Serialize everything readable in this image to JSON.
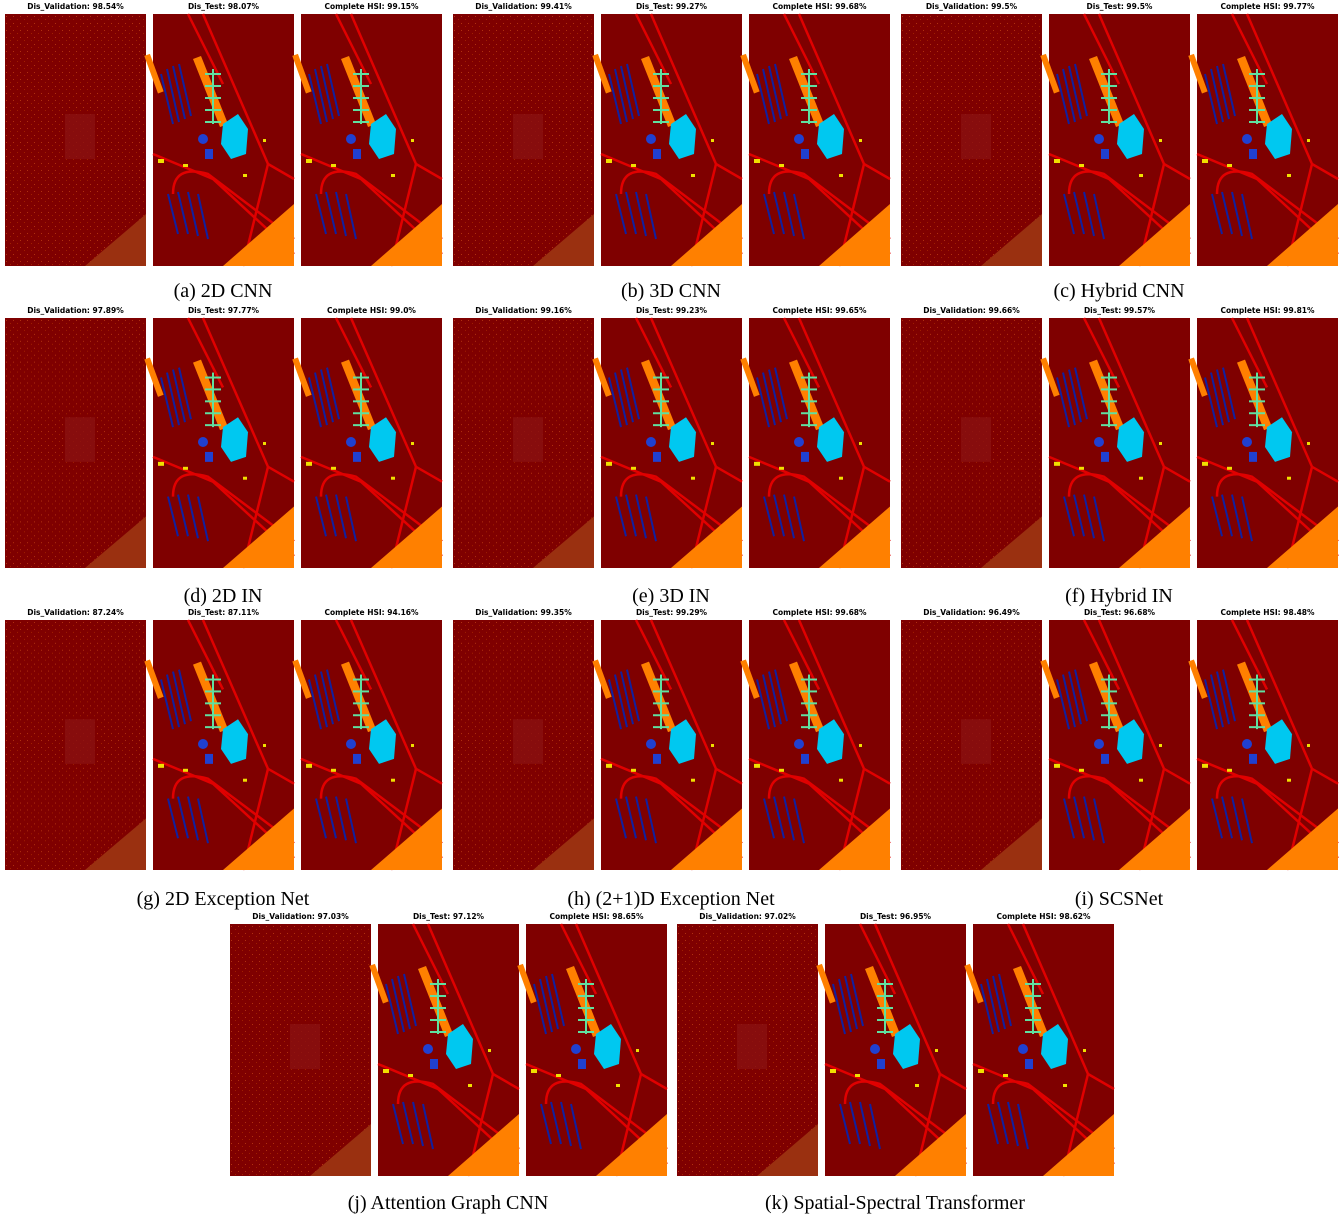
{
  "panels": [
    {
      "caption": "(a) 2D CNN",
      "maps": [
        "Dis_Validation: 98.54%",
        "Dis_Test: 98.07%",
        "Complete HSI: 99.15%"
      ]
    },
    {
      "caption": "(b) 3D CNN",
      "maps": [
        "Dis_Validation: 99.41%",
        "Dis_Test: 99.27%",
        "Complete HSI: 99.68%"
      ]
    },
    {
      "caption": "(c) Hybrid CNN",
      "maps": [
        "Dis_Validation: 99.5%",
        "Dis_Test: 99.5%",
        "Complete HSI: 99.77%"
      ]
    },
    {
      "caption": "(d) 2D IN",
      "maps": [
        "Dis_Validation: 97.89%",
        "Dis_Test: 97.77%",
        "Complete HSI: 99.0%"
      ]
    },
    {
      "caption": "(e) 3D IN",
      "maps": [
        "Dis_Validation: 99.16%",
        "Dis_Test: 99.23%",
        "Complete HSI: 99.65%"
      ]
    },
    {
      "caption": "(f) Hybrid IN",
      "maps": [
        "Dis_Validation: 99.66%",
        "Dis_Test: 99.57%",
        "Complete HSI: 99.81%"
      ]
    },
    {
      "caption": "(g) 2D Exception Net",
      "maps": [
        "Dis_Validation: 87.24%",
        "Dis_Test: 87.11%",
        "Complete HSI: 94.16%"
      ]
    },
    {
      "caption": "(h) (2+1)D Exception Net",
      "maps": [
        "Dis_Validation: 99.35%",
        "Dis_Test: 99.29%",
        "Complete HSI: 99.68%"
      ]
    },
    {
      "caption": "(i) SCSNet",
      "maps": [
        "Dis_Validation: 96.49%",
        "Dis_Test: 96.68%",
        "Complete HSI: 98.48%"
      ]
    },
    {
      "caption": "(j) Attention Graph CNN",
      "maps": [
        "Dis_Validation: 97.03%",
        "Dis_Test: 97.12%",
        "Complete HSI: 98.65%"
      ]
    },
    {
      "caption": "(k) Spatial-Spectral Transformer",
      "maps": [
        "Dis_Validation: 97.02%",
        "Dis_Test: 96.95%",
        "Complete HSI: 98.62%"
      ]
    }
  ]
}
